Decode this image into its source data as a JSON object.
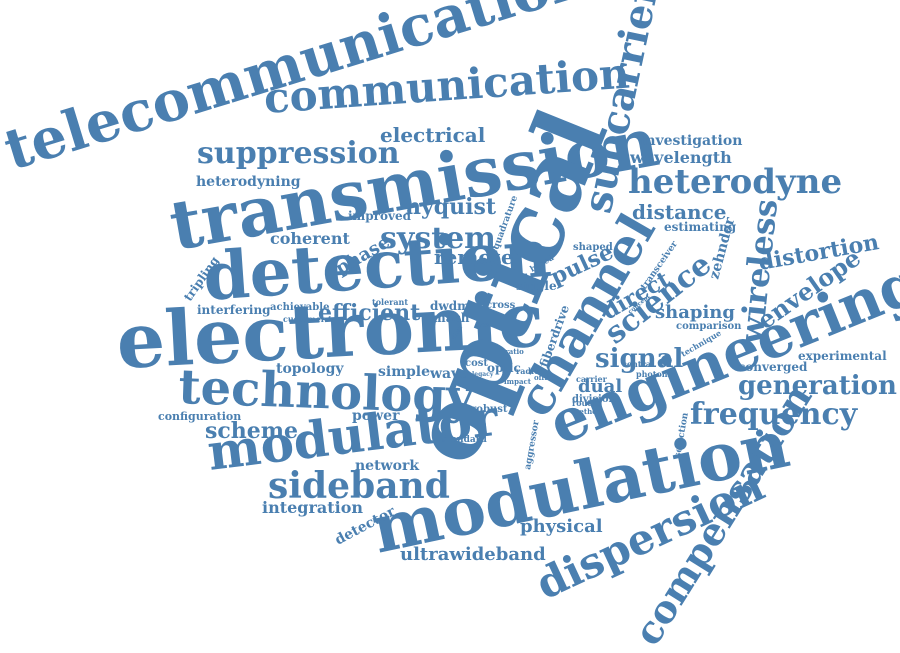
{
  "color": "#4a7fb0",
  "words": [
    "telecommunication",
    "communication",
    "transmission",
    "detection",
    "electronic",
    "technology",
    "modulator",
    "sideband",
    "modulation",
    "optical",
    "channel",
    "engineering",
    "subcarrier",
    "heterodyne",
    "distance",
    "wireless",
    "dispersion",
    "compensation",
    "frequency",
    "generation",
    "envelope",
    "distortion",
    "science",
    "signal",
    "suppression",
    "electrical",
    "investigation",
    "wavelength",
    "system",
    "nyquist",
    "coherent",
    "phase",
    "remote",
    "efficient",
    "pulse",
    "direct",
    "zehnder",
    "scheme",
    "integration",
    "network",
    "physical",
    "ultrawideband",
    "detector",
    "heterodyning",
    "tripling",
    "interfering",
    "topology",
    "configuration",
    "power",
    "simple",
    "wave",
    "dual",
    "shaping",
    "experimental",
    "converged",
    "comparison",
    "estimating",
    "transceiver",
    "shaped",
    "improved",
    "quadrature",
    "single",
    "based",
    "achievable",
    "customer",
    "tolerant",
    "dwdm",
    "mach",
    "cross",
    "cost",
    "radio",
    "robust",
    "standard",
    "aggressor",
    "division",
    "routed",
    "method",
    "selection",
    "technique",
    "photonic",
    "central",
    "carrier",
    "optic",
    "fiberdrive",
    "impact",
    "legacy",
    "data",
    "ratio",
    "office",
    "concept",
    "fiber"
  ]
}
